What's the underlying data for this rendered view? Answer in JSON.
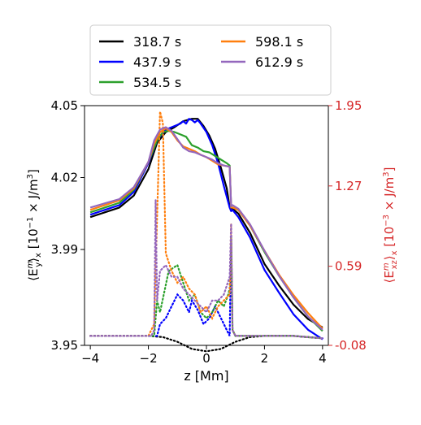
{
  "chart_data": {
    "type": "line",
    "title": "",
    "xlabel": "z [Mm]",
    "ylabel_left_main": "⟨E",
    "ylabel_left_sup": "m",
    "ylabel_left_sub": "y",
    "ylabel_left_rest": "⟩",
    "ylabel_left_sub2": "x",
    "ylabel_left_units": " [10",
    "ylabel_left_exp": "−1",
    "ylabel_left_units2": " × J/m",
    "ylabel_left_exp2": "3",
    "ylabel_left_close": "]",
    "ylabel_right_main": "⟨E",
    "ylabel_right_sup": "m",
    "ylabel_right_sub": "xz",
    "ylabel_right_rest": "⟩",
    "ylabel_right_sub2": "x",
    "ylabel_right_units": " [10",
    "ylabel_right_exp": "−3",
    "ylabel_right_units2": " × J/m",
    "ylabel_right_exp2": "3",
    "ylabel_right_close": "]",
    "xlim": [
      -4.2,
      4.2
    ],
    "ylim_left": [
      3.95,
      4.05
    ],
    "ylim_right": [
      -0.08,
      1.95
    ],
    "x_ticks": [
      -4,
      -2,
      0,
      2,
      4
    ],
    "x_tick_labels": [
      "−4",
      "−2",
      "0",
      "2",
      "4"
    ],
    "y_left_ticks": [
      3.95,
      3.99,
      4.02,
      4.05
    ],
    "y_left_tick_labels": [
      "3.95",
      "3.99",
      "4.02",
      "4.05"
    ],
    "y_right_ticks": [
      -0.08,
      0.59,
      1.27,
      1.95
    ],
    "y_right_tick_labels": [
      "-0.08",
      "0.59",
      "1.27",
      "1.95"
    ],
    "right_axis_color": "#d62728",
    "grid": false,
    "legend_position": "top",
    "series": [
      {
        "name": "318.7 s",
        "color": "#000000",
        "solid": {
          "x": [
            -4.0,
            -3.0,
            -2.5,
            -2.0,
            -1.7,
            -1.4,
            -1.1,
            -0.8,
            -0.5,
            -0.3,
            -0.1,
            0.1,
            0.3,
            0.5,
            0.7,
            0.8,
            0.9,
            1.1,
            1.5,
            2.0,
            2.5,
            3.0,
            3.5,
            4.0
          ],
          "y": [
            4.0035,
            4.0075,
            4.0125,
            4.0235,
            4.0345,
            4.039,
            4.041,
            4.0435,
            4.0445,
            4.0445,
            4.0415,
            4.0375,
            4.032,
            4.024,
            4.0155,
            4.0075,
            4.007,
            4.005,
            3.997,
            3.984,
            3.975,
            3.967,
            3.961,
            3.9575
          ]
        },
        "dotted": {
          "x": [
            -4.0,
            -3.0,
            -2.0,
            -1.5,
            -1.0,
            -0.5,
            0.0,
            0.5,
            1.0,
            1.5,
            2.0,
            3.0,
            4.0
          ],
          "y_right": [
            0.0,
            0.0,
            0.0,
            -0.01,
            -0.05,
            -0.11,
            -0.13,
            -0.11,
            -0.05,
            -0.01,
            0.0,
            0.0,
            -0.02
          ]
        }
      },
      {
        "name": "437.9 s",
        "color": "#0000ff",
        "solid": {
          "x": [
            -4.0,
            -3.0,
            -2.5,
            -2.0,
            -1.7,
            -1.4,
            -1.1,
            -0.9,
            -0.8,
            -0.7,
            -0.6,
            -0.5,
            -0.4,
            -0.3,
            -0.2,
            0.0,
            0.2,
            0.4,
            0.6,
            0.8,
            0.85,
            0.9,
            1.1,
            1.5,
            2.0,
            2.5,
            3.0,
            3.5,
            4.0
          ],
          "y": [
            4.0045,
            4.0085,
            4.014,
            4.026,
            4.0355,
            4.04,
            4.0415,
            4.0425,
            4.0435,
            4.0425,
            4.0445,
            4.044,
            4.043,
            4.044,
            4.0425,
            4.039,
            4.0335,
            4.026,
            4.0165,
            4.0075,
            4.006,
            4.0065,
            4.0035,
            3.995,
            3.9815,
            3.972,
            3.963,
            3.9565,
            3.9525
          ]
        },
        "dotted": {
          "x": [
            -4.0,
            -3.0,
            -2.0,
            -1.7,
            -1.6,
            -1.4,
            -1.2,
            -1.0,
            -0.8,
            -0.6,
            -0.5,
            -0.3,
            -0.1,
            0.1,
            0.3,
            0.5,
            0.7,
            0.8,
            0.85,
            0.9,
            1.0,
            1.5,
            2.0,
            3.0,
            4.0
          ],
          "y_right": [
            0.0,
            0.0,
            0.0,
            0.0,
            0.1,
            0.15,
            0.25,
            0.35,
            0.3,
            0.2,
            0.3,
            0.22,
            0.1,
            0.15,
            0.25,
            0.15,
            0.05,
            0.0,
            0.85,
            0.05,
            0.0,
            0.0,
            0.0,
            0.0,
            -0.02
          ]
        }
      },
      {
        "name": "534.5 s",
        "color": "#2ca02c",
        "solid": {
          "x": [
            -4.0,
            -3.0,
            -2.5,
            -2.0,
            -1.7,
            -1.5,
            -1.3,
            -1.1,
            -0.9,
            -0.7,
            -0.5,
            -0.3,
            -0.1,
            0.1,
            0.3,
            0.5,
            0.7,
            0.8,
            0.85,
            0.9,
            1.1,
            1.5,
            2.0,
            2.5,
            3.0,
            3.5,
            4.0
          ],
          "y": [
            4.0055,
            4.0095,
            4.015,
            4.0265,
            4.0355,
            4.039,
            4.0395,
            4.039,
            4.038,
            4.037,
            4.0335,
            4.0325,
            4.031,
            4.0305,
            4.029,
            4.0275,
            4.026,
            4.025,
            4.0075,
            4.0075,
            4.0065,
            4.0,
            3.989,
            3.979,
            3.97,
            3.962,
            3.956
          ]
        },
        "dotted": {
          "x": [
            -4.0,
            -3.0,
            -2.0,
            -1.8,
            -1.7,
            -1.6,
            -1.3,
            -1.0,
            -0.8,
            -0.6,
            -0.4,
            -0.2,
            0.0,
            0.2,
            0.4,
            0.6,
            0.75,
            0.8,
            0.85,
            0.9,
            1.0,
            1.5,
            2.0,
            3.0,
            4.0
          ],
          "y_right": [
            0.0,
            0.0,
            0.0,
            0.0,
            0.3,
            0.2,
            0.55,
            0.6,
            0.45,
            0.3,
            0.35,
            0.2,
            0.15,
            0.2,
            0.3,
            0.25,
            0.35,
            0.4,
            0.85,
            0.05,
            0.0,
            0.0,
            0.0,
            0.0,
            -0.02
          ]
        }
      },
      {
        "name": "598.1 s",
        "color": "#ff7f0e",
        "solid": {
          "x": [
            -4.0,
            -3.0,
            -2.5,
            -2.0,
            -1.8,
            -1.6,
            -1.4,
            -1.2,
            -1.0,
            -0.8,
            -0.6,
            -0.4,
            -0.2,
            0.0,
            0.2,
            0.4,
            0.6,
            0.8,
            0.85,
            0.9,
            1.1,
            1.5,
            2.0,
            2.5,
            3.0,
            3.5,
            4.0
          ],
          "y": [
            4.0065,
            4.0105,
            4.0155,
            4.0265,
            4.034,
            4.039,
            4.0405,
            4.039,
            4.0355,
            4.033,
            4.032,
            4.031,
            4.0295,
            4.0285,
            4.027,
            4.0255,
            4.025,
            4.0245,
            4.0075,
            4.0075,
            4.0065,
            4.0,
            3.9895,
            3.9795,
            3.971,
            3.9635,
            3.957
          ]
        },
        "dotted": {
          "x": [
            -4.0,
            -3.0,
            -2.0,
            -1.8,
            -1.6,
            -1.5,
            -1.4,
            -1.2,
            -1.0,
            -0.8,
            -0.6,
            -0.4,
            -0.2,
            0.0,
            0.2,
            0.4,
            0.6,
            0.8,
            0.85,
            0.9,
            1.0,
            1.5,
            2.0,
            3.0,
            4.0
          ],
          "y_right": [
            0.0,
            0.0,
            0.0,
            0.1,
            1.9,
            1.8,
            0.7,
            0.55,
            0.45,
            0.5,
            0.4,
            0.35,
            0.2,
            0.25,
            0.15,
            0.25,
            0.3,
            0.35,
            0.95,
            0.05,
            0.0,
            0.0,
            0.0,
            0.0,
            -0.02
          ]
        }
      },
      {
        "name": "612.9 s",
        "color": "#9467bd",
        "solid": {
          "x": [
            -4.0,
            -3.0,
            -2.5,
            -2.0,
            -1.8,
            -1.6,
            -1.4,
            -1.2,
            -1.0,
            -0.8,
            -0.6,
            -0.4,
            -0.2,
            0.0,
            0.2,
            0.4,
            0.6,
            0.8,
            0.85,
            0.9,
            1.1,
            1.5,
            2.0,
            2.5,
            3.0,
            3.5,
            4.0
          ],
          "y": [
            4.0075,
            4.011,
            4.016,
            4.0265,
            4.0355,
            4.04,
            4.041,
            4.0395,
            4.036,
            4.0325,
            4.031,
            4.0305,
            4.0295,
            4.0285,
            4.0275,
            4.026,
            4.025,
            4.0245,
            4.008,
            4.0085,
            4.007,
            4.0005,
            3.9895,
            3.979,
            3.97,
            3.962,
            3.9565
          ]
        },
        "dotted": {
          "x": [
            -4.0,
            -3.0,
            -2.0,
            -1.9,
            -1.8,
            -1.75,
            -1.7,
            -1.6,
            -1.4,
            -1.2,
            -1.0,
            -0.8,
            -0.6,
            -0.4,
            -0.2,
            0.0,
            0.2,
            0.4,
            0.6,
            0.8,
            0.85,
            0.9,
            1.0,
            1.5,
            2.0,
            3.0,
            4.0
          ],
          "y_right": [
            0.0,
            0.0,
            0.0,
            0.0,
            0.05,
            1.15,
            0.3,
            0.55,
            0.6,
            0.5,
            0.5,
            0.4,
            0.35,
            0.3,
            0.25,
            0.2,
            0.3,
            0.3,
            0.35,
            0.5,
            0.95,
            0.05,
            0.0,
            0.0,
            0.0,
            0.0,
            -0.02
          ]
        }
      }
    ]
  }
}
